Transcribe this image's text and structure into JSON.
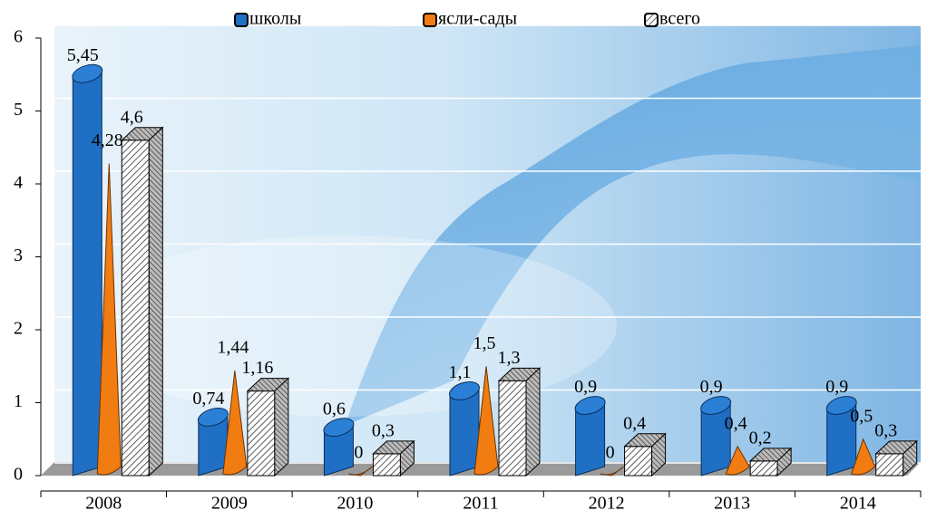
{
  "chart_data": {
    "type": "bar3d",
    "categories": [
      "2008",
      "2009",
      "2010",
      "2011",
      "2012",
      "2013",
      "2014"
    ],
    "series": [
      {
        "name": "школы",
        "color": "#1f6fc4",
        "shape": "cylinder",
        "values": [
          5.45,
          0.74,
          0.6,
          1.1,
          0.9,
          0.9,
          0.9
        ],
        "value_labels": [
          "5,45",
          "0,74",
          "0,6",
          "1,1",
          "0,9",
          "0,9",
          "0,9"
        ]
      },
      {
        "name": "ясли-сады",
        "color": "#f07c12",
        "shape": "cone",
        "values": [
          4.28,
          1.44,
          0,
          1.5,
          0,
          0.4,
          0.5
        ],
        "value_labels": [
          "4,28",
          "1,44",
          "0",
          "1,5",
          "0",
          "0,4",
          "0,5"
        ]
      },
      {
        "name": "всего",
        "color": "#ffffff",
        "shape": "box",
        "values": [
          4.6,
          1.16,
          0.3,
          1.3,
          0.4,
          0.2,
          0.3
        ],
        "value_labels": [
          "4,6",
          "1,16",
          "0,3",
          "1,3",
          "0,4",
          "0,2",
          "0,3"
        ]
      }
    ],
    "ylim": [
      0,
      6
    ],
    "yticks": [
      0,
      1,
      2,
      3,
      4,
      5,
      6
    ],
    "grid": true,
    "legend": "top"
  }
}
